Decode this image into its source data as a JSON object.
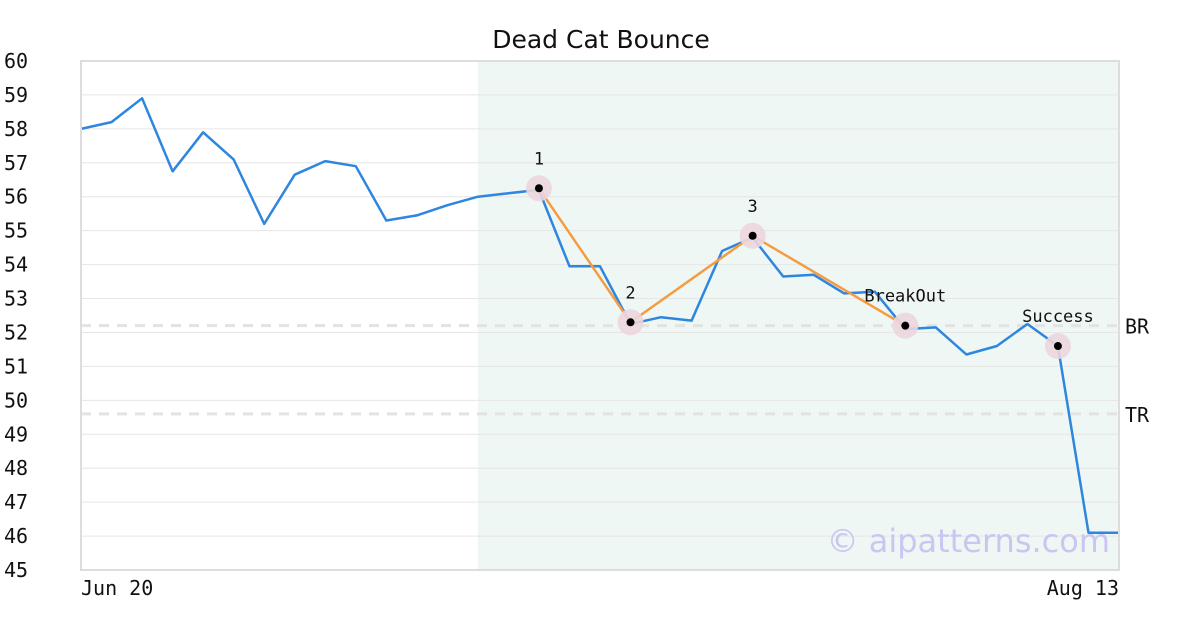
{
  "chart_data": {
    "type": "line",
    "title": "Dead Cat Bounce",
    "xlabel": "",
    "ylabel": "",
    "ylim": [
      45,
      60
    ],
    "yticks": [
      45,
      46,
      47,
      48,
      49,
      50,
      51,
      52,
      53,
      54,
      55,
      56,
      57,
      58,
      59,
      60
    ],
    "x_tick_labels": [
      "Jun 20",
      "Aug 13"
    ],
    "grid": true,
    "legend": "none",
    "colors": {
      "price": "#2e86de",
      "pattern": "#f59c42",
      "highlight": "#eef7f3",
      "level_line": "#e3e3e3",
      "pivot_halo": "#ecd6de",
      "watermark": "#c9c6f2"
    },
    "series": [
      {
        "values": [
          58.0,
          58.2,
          58.9,
          56.75,
          57.9,
          57.1,
          55.2,
          56.65,
          57.05,
          56.9,
          55.3,
          55.45,
          55.75,
          56.0,
          56.1,
          56.2,
          53.95,
          53.95,
          52.25,
          52.45,
          52.35,
          54.4,
          54.8,
          53.65,
          53.7,
          53.15,
          53.2,
          52.1,
          52.15,
          51.35,
          51.6,
          52.25,
          51.6,
          46.1,
          46.1
        ]
      }
    ],
    "highlight_region": {
      "start_index": 13,
      "end_index": 34
    },
    "pattern_points": [
      {
        "label": "1",
        "index": 15,
        "value": 56.25
      },
      {
        "label": "2",
        "index": 18,
        "value": 52.3
      },
      {
        "label": "3",
        "index": 22,
        "value": 54.85
      },
      {
        "label": "BreakOut",
        "index": 27,
        "value": 52.2
      }
    ],
    "success_point": {
      "label": "Success",
      "index": 32,
      "value": 51.6
    },
    "levels": [
      {
        "label": "BR",
        "value": 52.2
      },
      {
        "label": "TR",
        "value": 49.6
      }
    ],
    "watermark": "© aipatterns.com"
  }
}
